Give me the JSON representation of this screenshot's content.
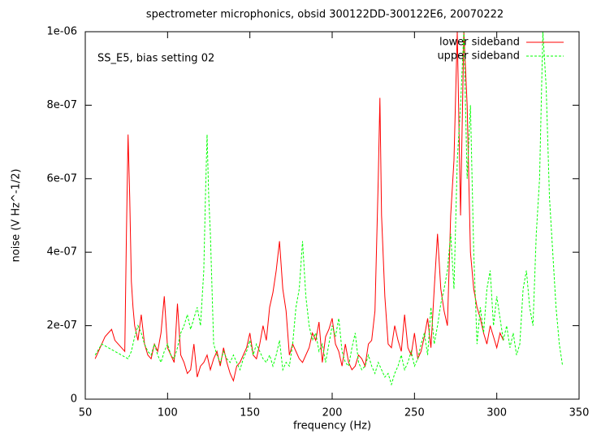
{
  "chart_data": {
    "type": "line",
    "title": "spectrometer microphonics, obsid 300122DD-300122E6, 20070222",
    "annotation": "SS_E5, bias setting 02",
    "xlabel": "frequency (Hz)",
    "ylabel": "noise (V Hz^-1/2)",
    "xlim": [
      50,
      350
    ],
    "xticks": [
      50,
      100,
      150,
      200,
      250,
      300,
      350
    ],
    "ylim": [
      0,
      1e-06
    ],
    "yticks": [
      0,
      {
        "value": 2e-07,
        "label": "2e-07"
      },
      {
        "value": 4e-07,
        "label": "4e-07"
      },
      {
        "value": 6e-07,
        "label": "6e-07"
      },
      {
        "value": 8e-07,
        "label": "8e-07"
      },
      {
        "value": 1e-06,
        "label": "1e-06"
      }
    ],
    "legend": "upper right",
    "series": [
      {
        "name": "lower sideband",
        "color": "#ff0000",
        "dashed": false,
        "x": [
          56,
          58,
          60,
          62,
          64,
          66,
          68,
          70,
          72,
          74,
          75,
          76,
          77,
          78,
          79,
          80,
          82,
          84,
          86,
          88,
          90,
          92,
          94,
          96,
          98,
          100,
          102,
          104,
          106,
          108,
          110,
          112,
          114,
          116,
          118,
          120,
          122,
          124,
          126,
          128,
          130,
          132,
          134,
          136,
          138,
          140,
          142,
          144,
          146,
          148,
          150,
          152,
          154,
          156,
          158,
          160,
          162,
          164,
          166,
          168,
          170,
          172,
          174,
          176,
          178,
          180,
          182,
          184,
          186,
          188,
          190,
          192,
          194,
          196,
          198,
          200,
          202,
          204,
          206,
          208,
          210,
          212,
          214,
          216,
          218,
          220,
          222,
          224,
          226,
          228,
          229,
          230,
          232,
          234,
          236,
          238,
          240,
          242,
          244,
          246,
          248,
          250,
          252,
          254,
          256,
          258,
          260,
          262,
          264,
          266,
          268,
          270,
          272,
          274,
          276,
          278,
          280,
          282,
          284,
          286,
          288,
          290,
          292,
          294,
          296,
          298,
          300,
          302,
          304
        ],
        "values": [
          1.1e-07,
          1.3e-07,
          1.5e-07,
          1.7e-07,
          1.8e-07,
          1.9e-07,
          1.6e-07,
          1.5e-07,
          1.4e-07,
          1.3e-07,
          4.5e-07,
          7.2e-07,
          5.5e-07,
          3.2e-07,
          2.5e-07,
          2e-07,
          1.6e-07,
          2.3e-07,
          1.5e-07,
          1.2e-07,
          1.1e-07,
          1.5e-07,
          1.3e-07,
          1.8e-07,
          2.8e-07,
          1.4e-07,
          1.2e-07,
          1e-07,
          2.6e-07,
          1.2e-07,
          1e-07,
          7e-08,
          8e-08,
          1.5e-07,
          6e-08,
          9e-08,
          1e-07,
          1.2e-07,
          8e-08,
          1.1e-07,
          1.3e-07,
          9e-08,
          1.4e-07,
          1e-07,
          7e-08,
          5e-08,
          9e-08,
          1e-07,
          1.2e-07,
          1.4e-07,
          1.8e-07,
          1.2e-07,
          1.1e-07,
          1.5e-07,
          2e-07,
          1.6e-07,
          2.5e-07,
          2.9e-07,
          3.5e-07,
          4.3e-07,
          3e-07,
          2.4e-07,
          1.2e-07,
          1.5e-07,
          1.3e-07,
          1.1e-07,
          1e-07,
          1.2e-07,
          1.4e-07,
          1.8e-07,
          1.6e-07,
          2.1e-07,
          1e-07,
          1.7e-07,
          1.9e-07,
          2.2e-07,
          1.5e-07,
          1.3e-07,
          9e-08,
          1.5e-07,
          1e-07,
          8e-08,
          9e-08,
          1.2e-07,
          1.1e-07,
          9e-08,
          1.5e-07,
          1.6e-07,
          2.4e-07,
          6e-07,
          8.2e-07,
          5e-07,
          2.8e-07,
          1.5e-07,
          1.4e-07,
          2e-07,
          1.6e-07,
          1.3e-07,
          2.3e-07,
          1.4e-07,
          1.2e-07,
          1.8e-07,
          1.1e-07,
          1.3e-07,
          1.7e-07,
          2.2e-07,
          1.4e-07,
          3e-07,
          4.5e-07,
          3e-07,
          2.4e-07,
          2e-07,
          5e-07,
          6.5e-07,
          1e-06,
          5e-07,
          1e-06,
          8e-07,
          4e-07,
          3e-07,
          2.5e-07,
          2.2e-07,
          1.8e-07,
          1.5e-07,
          2e-07,
          1.7e-07,
          1.4e-07,
          1.8e-07,
          1.6e-07
        ]
      },
      {
        "name": "upper sideband",
        "color": "#00ff00",
        "dashed": true,
        "x": [
          56,
          60,
          64,
          68,
          72,
          76,
          78,
          80,
          82,
          84,
          86,
          88,
          90,
          92,
          94,
          96,
          98,
          100,
          102,
          104,
          106,
          108,
          110,
          112,
          114,
          116,
          118,
          120,
          122,
          123,
          124,
          125,
          126,
          128,
          130,
          132,
          134,
          136,
          138,
          140,
          142,
          144,
          146,
          148,
          150,
          152,
          154,
          156,
          158,
          160,
          162,
          164,
          166,
          168,
          170,
          172,
          174,
          176,
          178,
          180,
          182,
          184,
          186,
          188,
          190,
          192,
          194,
          196,
          198,
          200,
          202,
          204,
          206,
          208,
          210,
          212,
          214,
          216,
          218,
          220,
          222,
          224,
          226,
          228,
          230,
          232,
          234,
          236,
          238,
          240,
          242,
          244,
          246,
          248,
          250,
          252,
          254,
          256,
          258,
          260,
          262,
          264,
          266,
          268,
          270,
          272,
          274,
          276,
          278,
          280,
          282,
          284,
          286,
          288,
          290,
          292,
          294,
          296,
          298,
          300,
          302,
          304,
          306,
          308,
          310,
          312,
          314,
          316,
          318,
          320,
          322,
          324,
          326,
          328,
          330,
          332,
          334,
          336,
          338,
          340
        ],
        "values": [
          1.2e-07,
          1.5e-07,
          1.4e-07,
          1.3e-07,
          1.2e-07,
          1.1e-07,
          1.3e-07,
          1.7e-07,
          2e-07,
          1.8e-07,
          1.5e-07,
          1.3e-07,
          1.2e-07,
          1.5e-07,
          1.2e-07,
          1e-07,
          1.3e-07,
          1.5e-07,
          1.2e-07,
          1.1e-07,
          1.4e-07,
          1.8e-07,
          2e-07,
          2.3e-07,
          1.9e-07,
          2.2e-07,
          2.5e-07,
          2e-07,
          3.5e-07,
          5.5e-07,
          7.2e-07,
          5.5e-07,
          4.5e-07,
          1.5e-07,
          1.2e-07,
          1e-07,
          1.3e-07,
          1.1e-07,
          1e-07,
          1.2e-07,
          1e-07,
          8e-08,
          1.1e-07,
          1.3e-07,
          1.6e-07,
          1.2e-07,
          1.5e-07,
          1.3e-07,
          1.1e-07,
          1e-07,
          1.2e-07,
          9e-08,
          1.2e-07,
          1.6e-07,
          8e-08,
          1e-07,
          9e-08,
          1.5e-07,
          2.5e-07,
          3e-07,
          4.3e-07,
          2.8e-07,
          2e-07,
          1.6e-07,
          1.8e-07,
          1.3e-07,
          1.5e-07,
          1e-07,
          1.5e-07,
          2e-07,
          1.7e-07,
          2.2e-07,
          1.3e-07,
          1e-07,
          9e-08,
          1.4e-07,
          1.8e-07,
          1e-07,
          8e-08,
          9e-08,
          1.2e-07,
          9e-08,
          7e-08,
          1e-07,
          8e-08,
          6e-08,
          7e-08,
          4e-08,
          7e-08,
          9e-08,
          1.2e-07,
          8e-08,
          1e-07,
          1.3e-07,
          9e-08,
          1.1e-07,
          1.5e-07,
          1.8e-07,
          1.2e-07,
          2.5e-07,
          1.5e-07,
          2e-07,
          2.6e-07,
          3e-07,
          3.5e-07,
          4.5e-07,
          3e-07,
          6.5e-07,
          8e-07,
          1e-06,
          6e-07,
          8e-07,
          4e-07,
          1.5e-07,
          2.5e-07,
          1.8e-07,
          3e-07,
          3.5e-07,
          2e-07,
          2.8e-07,
          2.2e-07,
          1.6e-07,
          2e-07,
          1.4e-07,
          1.8e-07,
          1.2e-07,
          1.5e-07,
          3e-07,
          3.5e-07,
          2.5e-07,
          2e-07,
          4.5e-07,
          6e-07,
          1e-06,
          8.5e-07,
          5.5e-07,
          4e-07,
          2.5e-07,
          1.5e-07,
          9e-08
        ]
      }
    ]
  }
}
